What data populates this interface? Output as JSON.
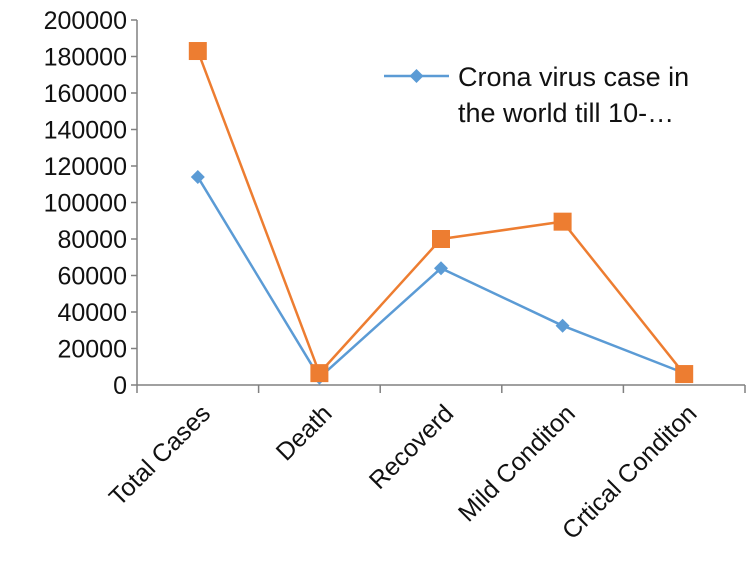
{
  "chart_data": {
    "type": "line",
    "title": "",
    "xlabel": "",
    "ylabel": "",
    "categories": [
      "Total Cases",
      "Death",
      "Recoverd",
      "Mild Conditon",
      "Crtical Conditon"
    ],
    "ylim": [
      0,
      200000
    ],
    "yticks": [
      0,
      20000,
      40000,
      60000,
      80000,
      100000,
      120000,
      140000,
      160000,
      180000,
      200000
    ],
    "grid": false,
    "series": [
      {
        "name": "Crona virus case in the world till 10-…",
        "color": "#5b9bd5",
        "marker": "diamond",
        "values": [
          114000,
          4000,
          64000,
          32500,
          6500
        ]
      },
      {
        "name": "",
        "color": "#ed7d31",
        "marker": "square",
        "values": [
          183000,
          6500,
          80000,
          89500,
          6000
        ]
      }
    ],
    "legend": {
      "position": "top-right",
      "lines": [
        "Crona virus case in",
        "the world till 10-…"
      ]
    }
  }
}
